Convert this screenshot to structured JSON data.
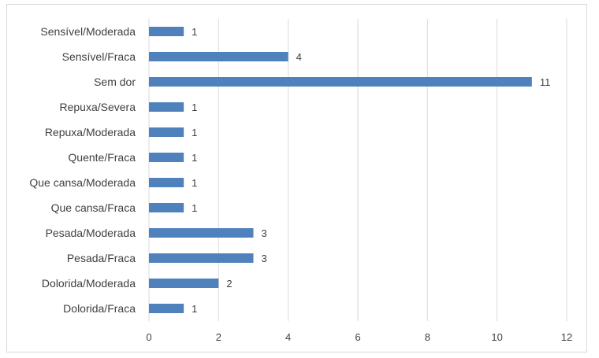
{
  "chart_data": {
    "type": "bar",
    "orientation": "horizontal",
    "categories": [
      "Sensível/Moderada",
      "Sensível/Fraca",
      "Sem dor",
      "Repuxa/Severa",
      "Repuxa/Moderada",
      "Quente/Fraca",
      "Que cansa/Moderada",
      "Que cansa/Fraca",
      "Pesada/Moderada",
      "Pesada/Fraca",
      "Dolorida/Moderada",
      "Dolorida/Fraca"
    ],
    "values": [
      1,
      4,
      11,
      1,
      1,
      1,
      1,
      1,
      3,
      3,
      2,
      1
    ],
    "xlim": [
      0,
      12
    ],
    "xticks": [
      0,
      2,
      4,
      6,
      8,
      10,
      12
    ],
    "grid": true,
    "data_labels": true,
    "bar_color": "#4f81bd",
    "grid_color": "#d9d9d9",
    "text_color": "#404040"
  }
}
